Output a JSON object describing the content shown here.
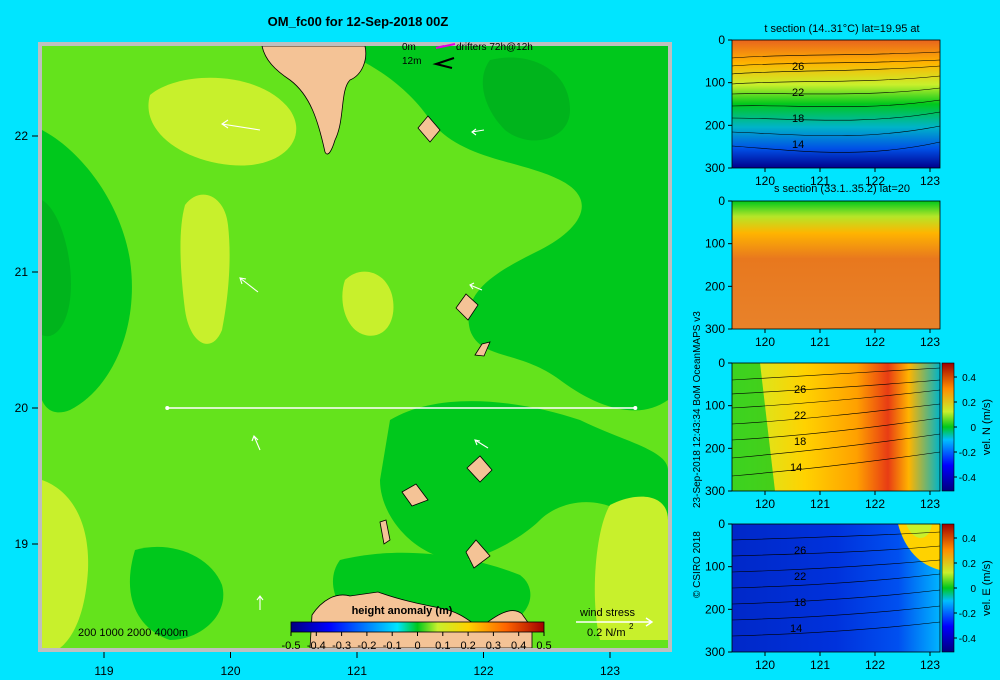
{
  "colors": {
    "background": "#00e5ff",
    "frame": "#bfbfbf",
    "land": "#f4c396",
    "anomaly_zero": "#64e31c",
    "anomaly_low": "#00c81c",
    "anomaly_high": "#c8f02c",
    "section_line": "#ffffff"
  },
  "main_map": {
    "title": "OM_fc00 for 12-Sep-2018 00Z",
    "drifters_legend": {
      "label_0m": "0m",
      "label_12m": "12m",
      "text": "drifters 72h@12h"
    },
    "depth_legend": "200  1000  2000  4000m",
    "colorbar_title": "height anomaly (m)",
    "colorbar_ticks": [
      "-0.5",
      "-0.4",
      "-0.3",
      "-0.2",
      "-0.1",
      "0",
      "0.1",
      "0.2",
      "0.3",
      "0.4",
      "0.5"
    ],
    "wind_stress": {
      "label": "wind stress",
      "unit": "0.2 N/m",
      "unit_sup": "2"
    },
    "x_ticks": [
      "119",
      "120",
      "121",
      "122",
      "123"
    ],
    "y_ticks": [
      "22",
      "21",
      "20",
      "19"
    ],
    "section_line": {
      "lat": 20,
      "lon_start": 119.5,
      "lon_end": 123.2
    }
  },
  "side_panels": {
    "t_section": {
      "title": "t section (14..31°C) lat=19.95 at",
      "contour_labels": [
        "26",
        "22",
        "18",
        "14"
      ]
    },
    "s_section": {
      "title": "s section (33.1..35.2) lat=20"
    },
    "v_section": {
      "contour_labels": [
        "26",
        "22",
        "18",
        "14"
      ],
      "colorbar_label": "vel. N  (m/s)"
    },
    "u_section": {
      "contour_labels": [
        "26",
        "22",
        "18",
        "14"
      ],
      "colorbar_label": "vel. E  (m/s)"
    },
    "x_ticks": [
      "120",
      "121",
      "122",
      "123"
    ],
    "depth_ticks": [
      "0",
      "100",
      "200",
      "300"
    ],
    "vel_ticks": [
      "0.4",
      "0.2",
      "0",
      "-0.2",
      "-0.4"
    ],
    "side_text": "23-Sep-2018 12:43:34 BoM OceanMAPS v3",
    "copyright": "© CSIRO 2018"
  },
  "chart_data": [
    {
      "type": "heatmap",
      "name": "height anomaly map",
      "title": "OM_fc00 for 12-Sep-2018 00Z",
      "x": "longitude",
      "y": "latitude",
      "xlim": [
        118.5,
        123.5
      ],
      "ylim": [
        18.3,
        22.7
      ],
      "color_range": [
        -0.5,
        0.5
      ],
      "colorbar_label": "height anomaly (m)",
      "section_line_lat": 20,
      "note": "anomaly values mostly between 0 and 0.1 m"
    },
    {
      "type": "heatmap",
      "title": "t section (14..31°C) lat=19.95 at",
      "x": [
        120,
        121,
        122,
        123
      ],
      "depth_range": [
        0,
        300
      ],
      "contours": [
        26,
        22,
        18,
        14
      ]
    },
    {
      "type": "heatmap",
      "title": "s section (33.1..35.2) lat=20",
      "x": [
        120,
        121,
        122,
        123
      ],
      "depth_range": [
        0,
        300
      ]
    },
    {
      "type": "heatmap",
      "name": "vel. N (m/s)",
      "x": [
        120,
        121,
        122,
        123
      ],
      "depth_range": [
        0,
        300
      ],
      "color_range": [
        -0.4,
        0.4
      ],
      "contours": [
        26,
        22,
        18,
        14
      ]
    },
    {
      "type": "heatmap",
      "name": "vel. E (m/s)",
      "x": [
        120,
        121,
        122,
        123
      ],
      "depth_range": [
        0,
        300
      ],
      "color_range": [
        -0.4,
        0.4
      ],
      "contours": [
        26,
        22,
        18,
        14
      ]
    }
  ]
}
